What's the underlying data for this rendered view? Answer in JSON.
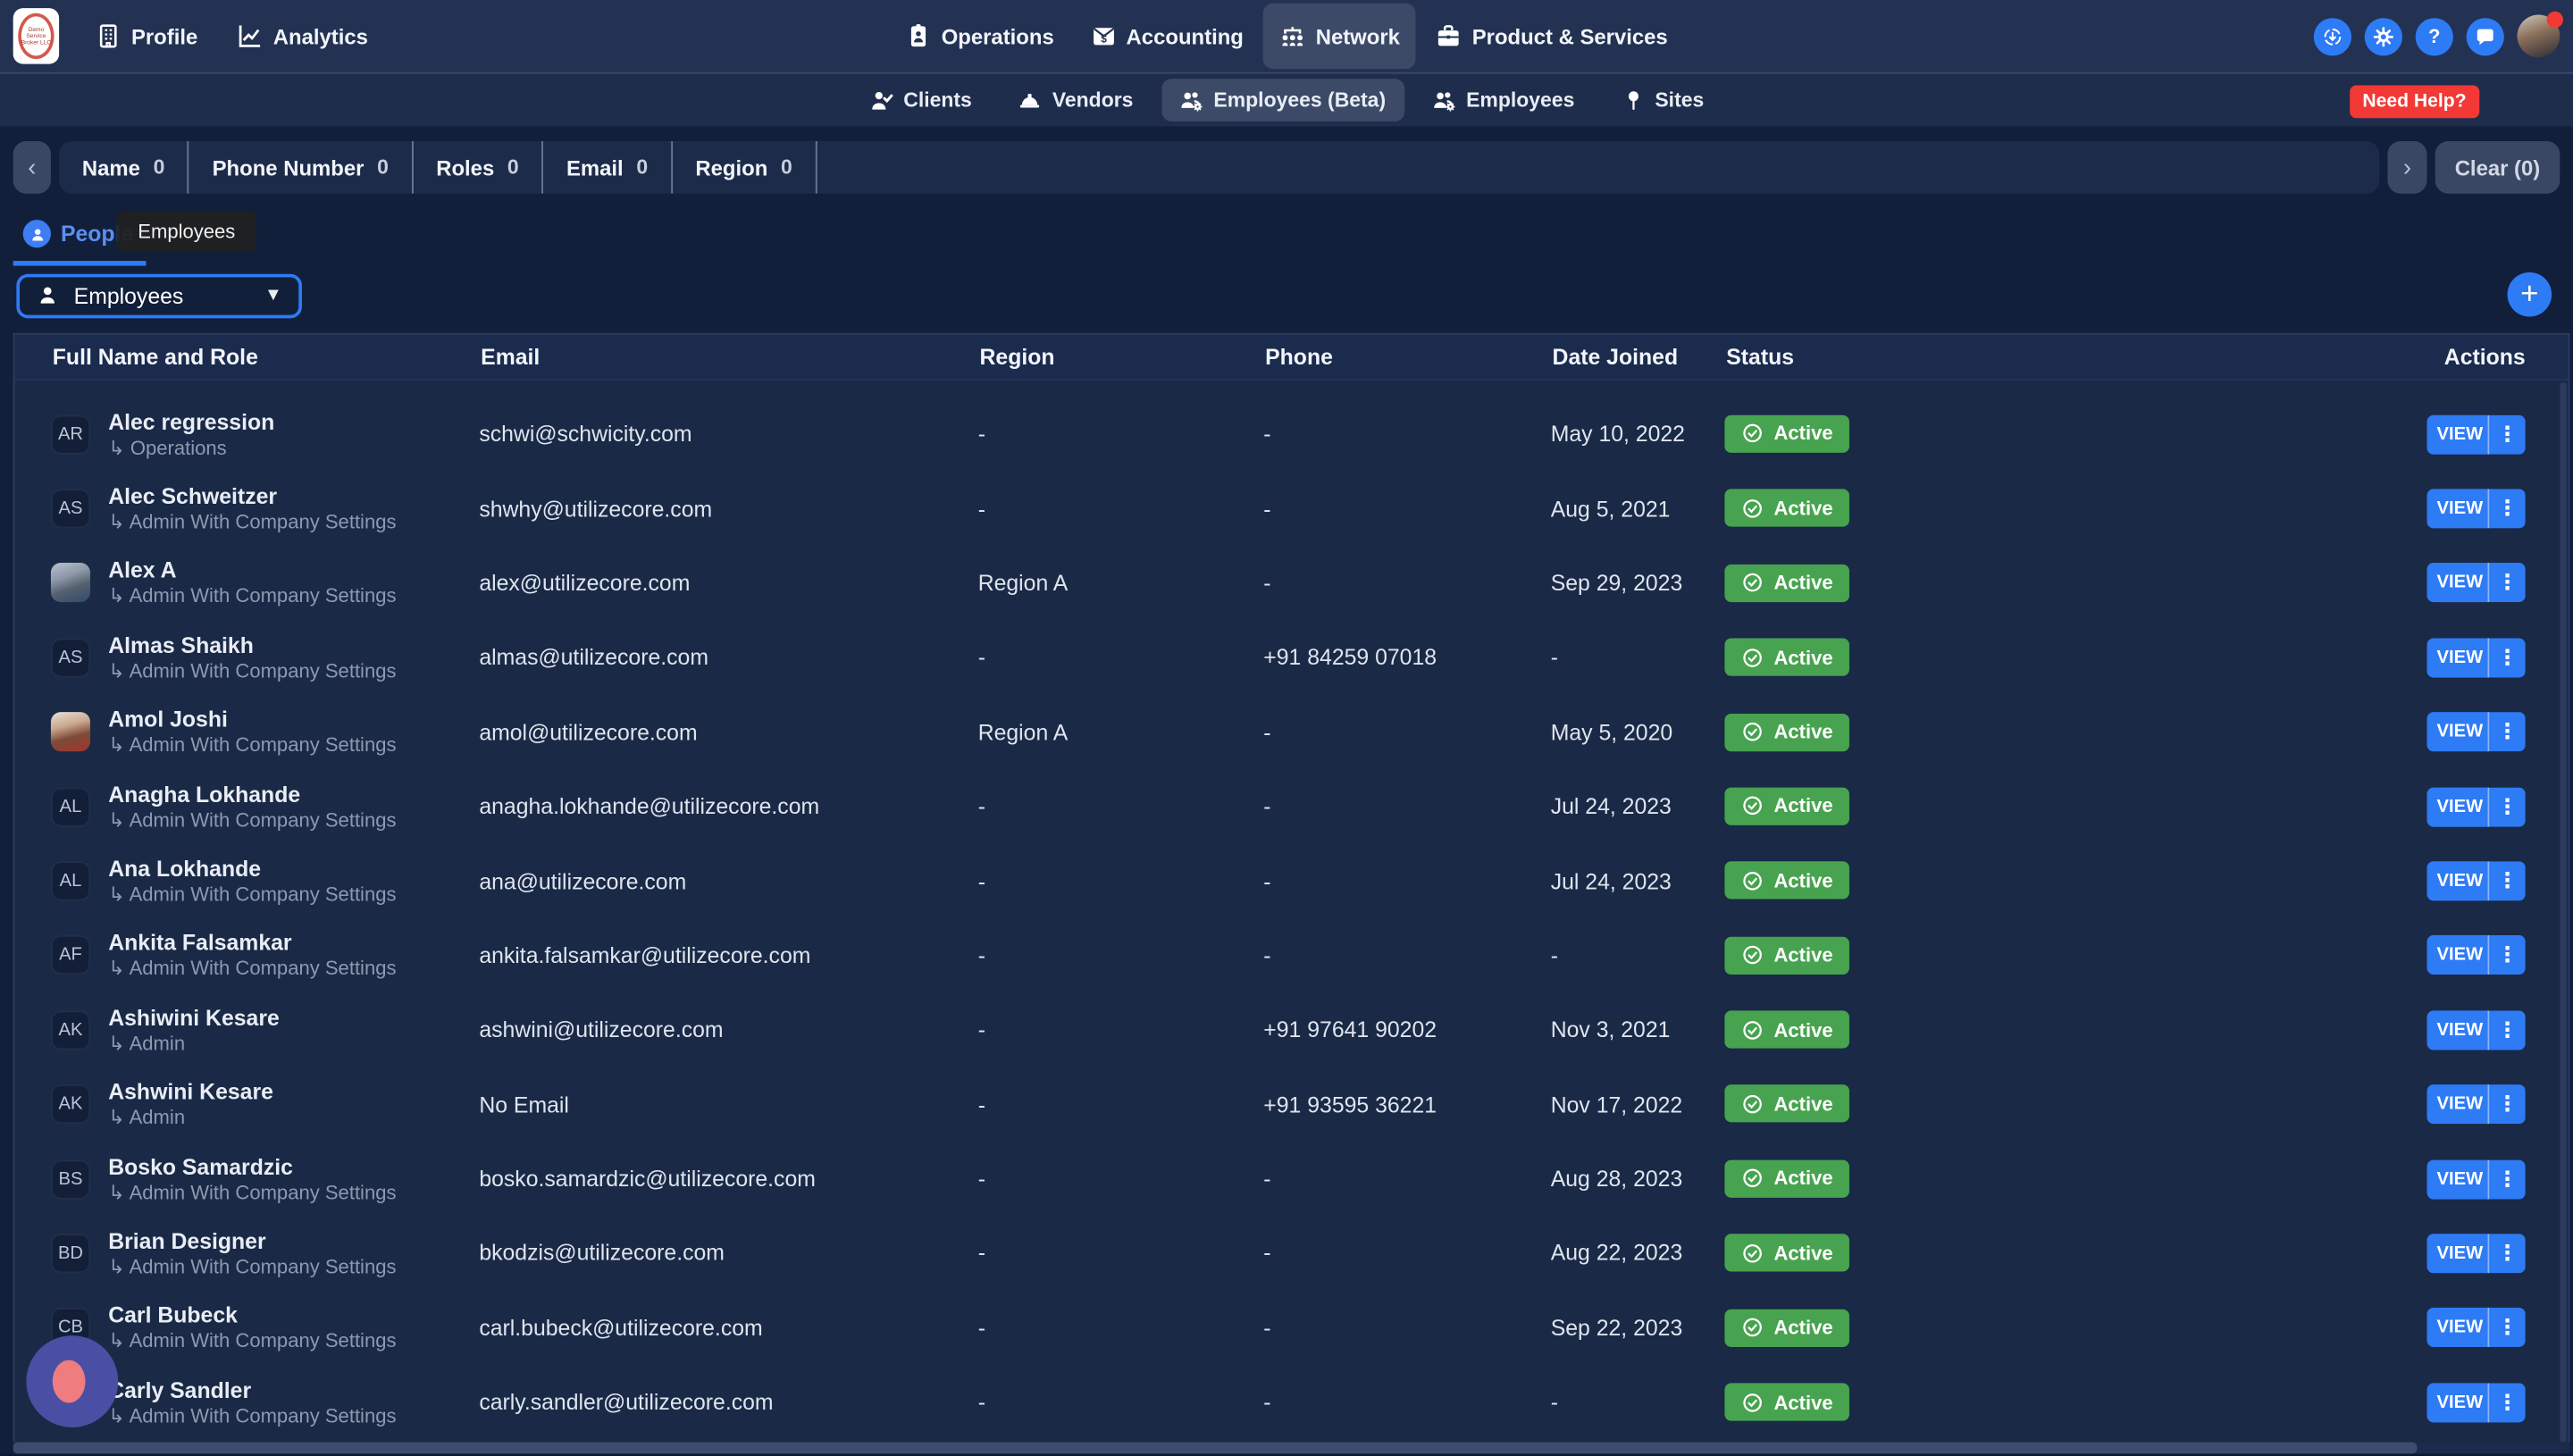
{
  "colors": {
    "accent": "#2e7bf6",
    "green": "#47a34f",
    "red": "#f23936",
    "purple": "#4a4fa4",
    "salmon": "#ef7d80",
    "topnav_bg": "#233252",
    "subnav_bg": "#1f2d4c",
    "page_bg": "#121f3a",
    "table_bg": "#1a2946"
  },
  "topnav": {
    "logo_text": "Demo Service Broker LLC",
    "left_items": [
      {
        "label": "Profile"
      },
      {
        "label": "Analytics"
      }
    ],
    "center_items": [
      {
        "label": "Operations"
      },
      {
        "label": "Accounting"
      },
      {
        "label": "Network"
      },
      {
        "label": "Product & Services"
      }
    ]
  },
  "subnav": {
    "items": [
      {
        "label": "Clients"
      },
      {
        "label": "Vendors"
      },
      {
        "label": "Employees (Beta)"
      },
      {
        "label": "Employees"
      },
      {
        "label": "Sites"
      }
    ],
    "need_help_label": "Need Help?"
  },
  "filterbar": {
    "filters": [
      {
        "label": "Name",
        "count": "0"
      },
      {
        "label": "Phone Number",
        "count": "0"
      },
      {
        "label": "Roles",
        "count": "0"
      },
      {
        "label": "Email",
        "count": "0"
      },
      {
        "label": "Region",
        "count": "0"
      }
    ],
    "clear_label": "Clear (0)"
  },
  "people_tab": {
    "label": "People",
    "tooltip": "Employees"
  },
  "toolbar": {
    "dropdown_value": "Employees"
  },
  "table": {
    "headers": [
      "Full Name and Role",
      "Email",
      "Region",
      "Phone",
      "Date Joined",
      "Status",
      "Actions"
    ],
    "view_label": "VIEW",
    "rows": [
      {
        "initials": "AR",
        "photo": null,
        "name": "Alec regression",
        "role": "↳ Operations",
        "email": "schwi@schwicity.com",
        "region": "-",
        "phone": "-",
        "date_joined": "May 10, 2022",
        "status": "Active"
      },
      {
        "initials": "AS",
        "photo": null,
        "name": "Alec Schweitzer",
        "role": "↳ Admin With Company Settings",
        "email": "shwhy@utilizecore.com",
        "region": "-",
        "phone": "-",
        "date_joined": "Aug 5, 2021",
        "status": "Active"
      },
      {
        "initials": "",
        "photo": "photo-1",
        "name": "Alex A",
        "role": "↳ Admin With Company Settings",
        "email": "alex@utilizecore.com",
        "region": "Region A",
        "phone": "-",
        "date_joined": "Sep 29, 2023",
        "status": "Active"
      },
      {
        "initials": "AS",
        "photo": null,
        "name": "Almas Shaikh",
        "role": "↳ Admin With Company Settings",
        "email": "almas@utilizecore.com",
        "region": "-",
        "phone": "+91 84259 07018",
        "date_joined": "-",
        "status": "Active"
      },
      {
        "initials": "",
        "photo": "photo-2",
        "name": "Amol Joshi",
        "role": "↳ Admin With Company Settings",
        "email": "amol@utilizecore.com",
        "region": "Region A",
        "phone": "-",
        "date_joined": "May 5, 2020",
        "status": "Active"
      },
      {
        "initials": "AL",
        "photo": null,
        "name": "Anagha Lokhande",
        "role": "↳ Admin With Company Settings",
        "email": "anagha.lokhande@utilizecore.com",
        "region": "-",
        "phone": "-",
        "date_joined": "Jul 24, 2023",
        "status": "Active"
      },
      {
        "initials": "AL",
        "photo": null,
        "name": "Ana Lokhande",
        "role": "↳ Admin With Company Settings",
        "email": "ana@utilizecore.com",
        "region": "-",
        "phone": "-",
        "date_joined": "Jul 24, 2023",
        "status": "Active"
      },
      {
        "initials": "AF",
        "photo": null,
        "name": "Ankita Falsamkar",
        "role": "↳ Admin With Company Settings",
        "email": "ankita.falsamkar@utilizecore.com",
        "region": "-",
        "phone": "-",
        "date_joined": "-",
        "status": "Active"
      },
      {
        "initials": "AK",
        "photo": null,
        "name": "Ashiwini Kesare",
        "role": "↳ Admin",
        "email": "ashwini@utilizecore.com",
        "region": "-",
        "phone": "+91 97641 90202",
        "date_joined": "Nov 3, 2021",
        "status": "Active"
      },
      {
        "initials": "AK",
        "photo": null,
        "name": "Ashwini Kesare",
        "role": "↳ Admin",
        "email": "No Email",
        "region": "-",
        "phone": "+91 93595 36221",
        "date_joined": "Nov 17, 2022",
        "status": "Active"
      },
      {
        "initials": "BS",
        "photo": null,
        "name": "Bosko Samardzic",
        "role": "↳ Admin With Company Settings",
        "email": "bosko.samardzic@utilizecore.com",
        "region": "-",
        "phone": "-",
        "date_joined": "Aug 28, 2023",
        "status": "Active"
      },
      {
        "initials": "BD",
        "photo": null,
        "name": "Brian Designer",
        "role": "↳ Admin With Company Settings",
        "email": "bkodzis@utilizecore.com",
        "region": "-",
        "phone": "-",
        "date_joined": "Aug 22, 2023",
        "status": "Active"
      },
      {
        "initials": "CB",
        "photo": null,
        "name": "Carl Bubeck",
        "role": "↳ Admin With Company Settings",
        "email": "carl.bubeck@utilizecore.com",
        "region": "-",
        "phone": "-",
        "date_joined": "Sep 22, 2023",
        "status": "Active"
      },
      {
        "initials": "",
        "photo": null,
        "name": "Carly Sandler",
        "role": "↳ Admin With Company Settings",
        "email": "carly.sandler@utilizecore.com",
        "region": "-",
        "phone": "-",
        "date_joined": "-",
        "status": "Active"
      }
    ]
  }
}
